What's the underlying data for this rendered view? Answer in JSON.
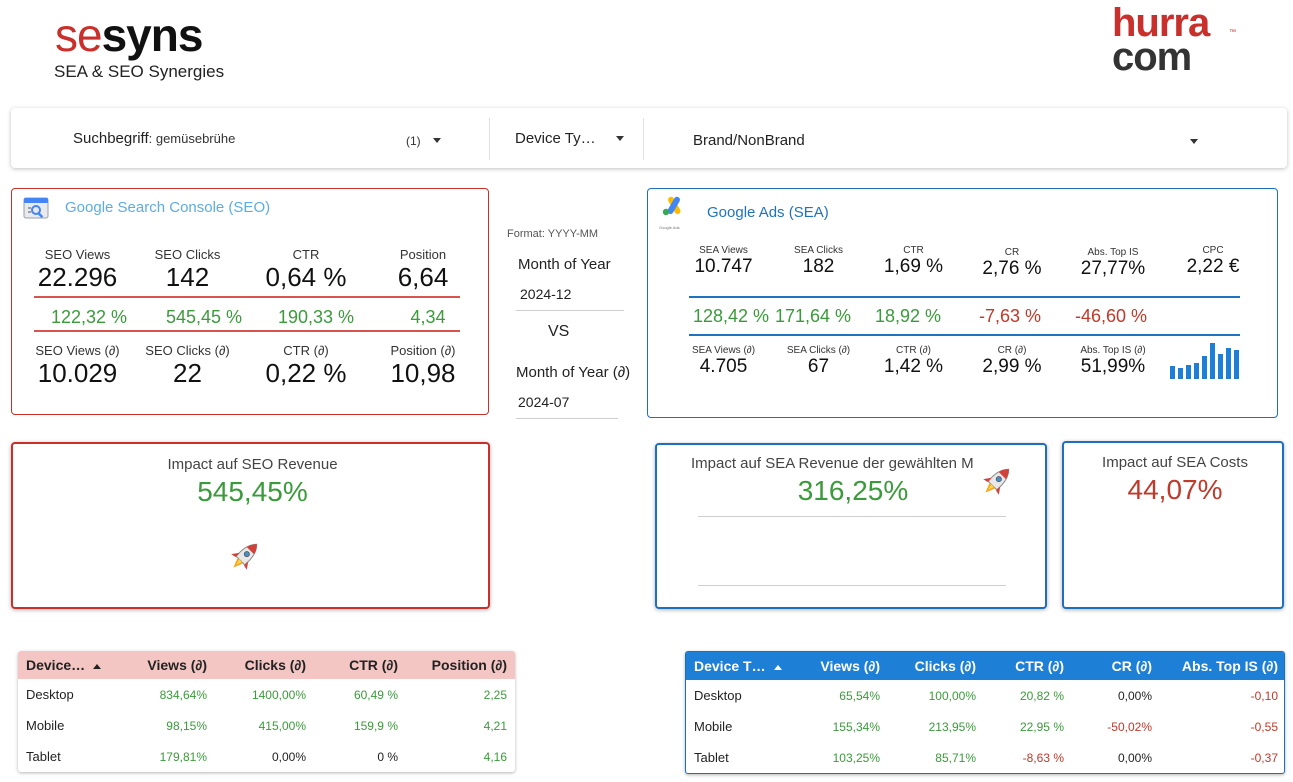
{
  "header": {
    "logo_se": "se",
    "logo_syns": "syns",
    "logo_subtitle": "SEA & SEO Synergies",
    "partner_logo_top": "hurra",
    "partner_logo_bottom": "com",
    "partner_logo_tm": "™"
  },
  "filters": {
    "search_label": "Suchbegriff",
    "search_value": ": gemüsebrühe",
    "search_count": "(1)",
    "device_label": "Device Ty…",
    "brand_label": "Brand/NonBrand"
  },
  "seo": {
    "title": "Google Search Console (SEO)",
    "current": [
      {
        "label": "SEO Views",
        "value": "22.296"
      },
      {
        "label": "SEO Clicks",
        "value": "142"
      },
      {
        "label": "CTR",
        "value": "0,64 %"
      },
      {
        "label": "Position",
        "value": "6,64"
      }
    ],
    "deltas": [
      "122,32 %",
      "545,45 %",
      "190,33 %",
      "4,34"
    ],
    "previous": [
      {
        "label": "SEO Views (∂)",
        "value": "10.029"
      },
      {
        "label": "SEO Clicks (∂)",
        "value": "22"
      },
      {
        "label": "CTR (∂)",
        "value": "0,22 %"
      },
      {
        "label": "Position (∂)",
        "value": "10,98"
      }
    ]
  },
  "dates": {
    "format_hint": "Format: YYYY-MM",
    "current_label": "Month of Year",
    "current_value": "2024-12",
    "vs": "VS",
    "compare_label": "Month of Year (∂)",
    "compare_value": "2024-07"
  },
  "sea": {
    "title": "Google Ads (SEA)",
    "logo_caption": "Google Ads",
    "current": [
      {
        "label": "SEA Views",
        "value": "10.747"
      },
      {
        "label": "SEA Clicks",
        "value": "182"
      },
      {
        "label": "CTR",
        "value": "1,69 %"
      },
      {
        "label": "CR",
        "value": "2,76 %"
      },
      {
        "label": "Abs. Top IS",
        "value": "27,77%"
      },
      {
        "label": "CPC",
        "value": "2,22 €"
      }
    ],
    "deltas": [
      {
        "value": "128,42 %",
        "trend": "pos"
      },
      {
        "value": "171,64 %",
        "trend": "pos"
      },
      {
        "value": "18,92 %",
        "trend": "pos"
      },
      {
        "value": "-7,63 %",
        "trend": "neg"
      },
      {
        "value": "-46,60 %",
        "trend": "neg"
      }
    ],
    "previous": [
      {
        "label": "SEA Views (∂)",
        "value": "4.705"
      },
      {
        "label": "SEA Clicks (∂)",
        "value": "67"
      },
      {
        "label": "CTR (∂)",
        "value": "1,42 %"
      },
      {
        "label": "CR (∂)",
        "value": "2,99 %"
      },
      {
        "label": "Abs. Top IS (∂)",
        "value": "51,99%"
      }
    ],
    "sparkbars": [
      0.35,
      0.3,
      0.4,
      0.45,
      0.65,
      1.0,
      0.7,
      0.85,
      0.8
    ]
  },
  "impact": {
    "seo_title": "Impact auf SEO Revenue",
    "seo_value": "545,45%",
    "sea_rev_title": "Impact auf SEA Revenue der gewählten M",
    "sea_rev_value": "316,25%",
    "sea_cost_title": "Impact auf SEA Costs",
    "sea_cost_value": "44,07%"
  },
  "seo_table": {
    "columns": [
      "Device…",
      "Views (∂)",
      "Clicks (∂)",
      "CTR (∂)",
      "Position (∂)"
    ],
    "rows": [
      {
        "device": "Desktop",
        "cells": [
          {
            "v": "834,64%",
            "t": "pos"
          },
          {
            "v": "1400,00%",
            "t": "pos"
          },
          {
            "v": "60,49 %",
            "t": "pos"
          },
          {
            "v": "2,25",
            "t": "pos"
          }
        ]
      },
      {
        "device": "Mobile",
        "cells": [
          {
            "v": "98,15%",
            "t": "pos"
          },
          {
            "v": "415,00%",
            "t": "pos"
          },
          {
            "v": "159,9 %",
            "t": "pos"
          },
          {
            "v": "4,21",
            "t": "pos"
          }
        ]
      },
      {
        "device": "Tablet",
        "cells": [
          {
            "v": "179,81%",
            "t": "pos"
          },
          {
            "v": "0,00%",
            "t": "neu"
          },
          {
            "v": "0 %",
            "t": "neu"
          },
          {
            "v": "4,16",
            "t": "pos"
          }
        ]
      }
    ]
  },
  "sea_table": {
    "columns": [
      "Device T…",
      "Views (∂)",
      "Clicks (∂)",
      "CTR (∂)",
      "CR (∂)",
      "Abs. Top IS (∂)"
    ],
    "rows": [
      {
        "device": "Desktop",
        "cells": [
          {
            "v": "65,54%",
            "t": "pos"
          },
          {
            "v": "100,00%",
            "t": "pos"
          },
          {
            "v": "20,82 %",
            "t": "pos"
          },
          {
            "v": "0,00%",
            "t": "neu"
          },
          {
            "v": "-0,10",
            "t": "neg"
          }
        ]
      },
      {
        "device": "Mobile",
        "cells": [
          {
            "v": "155,34%",
            "t": "pos"
          },
          {
            "v": "213,95%",
            "t": "pos"
          },
          {
            "v": "22,95 %",
            "t": "pos"
          },
          {
            "v": "-50,02%",
            "t": "neg"
          },
          {
            "v": "-0,55",
            "t": "neg"
          }
        ]
      },
      {
        "device": "Tablet",
        "cells": [
          {
            "v": "103,25%",
            "t": "pos"
          },
          {
            "v": "85,71%",
            "t": "pos"
          },
          {
            "v": "-8,63 %",
            "t": "neg"
          },
          {
            "v": "0,00%",
            "t": "neu"
          },
          {
            "v": "-0,37",
            "t": "neg"
          }
        ]
      }
    ]
  }
}
